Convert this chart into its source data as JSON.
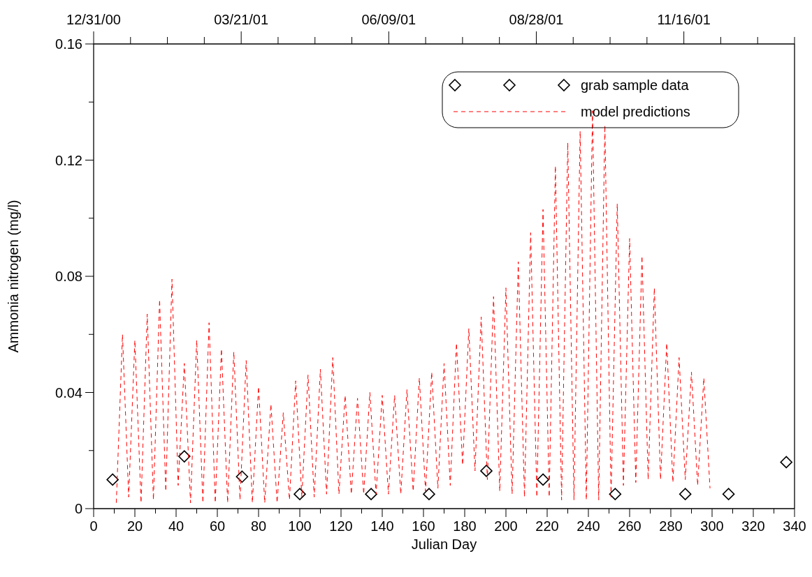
{
  "chart_data": {
    "type": "line",
    "xlabel": "Julian Day",
    "ylabel": "Ammonia nitrogen (mg/l)",
    "xlim": [
      0,
      340
    ],
    "ylim": [
      0,
      0.16
    ],
    "xticks": [
      0,
      {
        "value": 10,
        "label": null
      },
      20,
      {
        "value": 30,
        "label": null
      },
      40,
      {
        "value": 50,
        "label": null
      },
      60,
      {
        "value": 70,
        "label": null
      },
      80,
      {
        "value": 90,
        "label": null
      },
      100,
      {
        "value": 110,
        "label": null
      },
      120,
      {
        "value": 130,
        "label": null
      },
      140,
      {
        "value": 150,
        "label": null
      },
      160,
      {
        "value": 170,
        "label": null
      },
      180,
      {
        "value": 190,
        "label": null
      },
      200,
      {
        "value": 210,
        "label": null
      },
      220,
      {
        "value": 230,
        "label": null
      },
      240,
      {
        "value": 250,
        "label": null
      },
      260,
      {
        "value": 270,
        "label": null
      },
      280,
      {
        "value": 290,
        "label": null
      },
      300,
      {
        "value": 310,
        "label": null
      },
      320,
      {
        "value": 330,
        "label": null
      },
      340
    ],
    "yticks": [
      0,
      {
        "value": 0.02,
        "label": null
      },
      0.04,
      {
        "value": 0.06,
        "label": null
      },
      0.08,
      {
        "value": 0.1,
        "label": null
      },
      0.12,
      {
        "value": 0.14,
        "label": null
      },
      0.16
    ],
    "x2lim": [
      "2000-12-31",
      "2002-01-15"
    ],
    "x2ticks": [
      {
        "value": "2000-12-31",
        "label": "12/31/00"
      },
      {
        "value": "2001-01-20",
        "label": null
      },
      {
        "value": "2001-02-09",
        "label": null
      },
      {
        "value": "2001-03-01",
        "label": null
      },
      {
        "value": "2001-03-21",
        "label": "03/21/01"
      },
      {
        "value": "2001-04-10",
        "label": null
      },
      {
        "value": "2001-04-30",
        "label": null
      },
      {
        "value": "2001-05-20",
        "label": null
      },
      {
        "value": "2001-06-09",
        "label": "06/09/01"
      },
      {
        "value": "2001-06-29",
        "label": null
      },
      {
        "value": "2001-07-19",
        "label": null
      },
      {
        "value": "2001-08-08",
        "label": null
      },
      {
        "value": "2001-08-28",
        "label": "08/28/01"
      },
      {
        "value": "2001-09-17",
        "label": null
      },
      {
        "value": "2001-10-07",
        "label": null
      },
      {
        "value": "2001-10-27",
        "label": null
      },
      {
        "value": "2001-11-16",
        "label": "11/16/01"
      },
      {
        "value": "2001-12-06",
        "label": null
      },
      {
        "value": "2001-12-26",
        "label": null
      },
      {
        "value": "2002-01-15",
        "label": null
      }
    ],
    "grid": false,
    "legend": "top right",
    "series": [
      {
        "name": "grab sample data",
        "type": "scatter",
        "marker": "diamond",
        "color": "#000000",
        "x": [
          9.2,
          44,
          72,
          100,
          134.6,
          162.7,
          190.5,
          218,
          253,
          287,
          308,
          336
        ],
        "values": [
          0.01,
          0.018,
          0.011,
          0.005,
          0.005,
          0.005,
          0.013,
          0.01,
          0.005,
          0.005,
          0.005,
          0.016
        ]
      },
      {
        "name": "model predictions",
        "line_style": "dashed",
        "color": "#ff0000",
        "x": [
          11,
          14,
          17,
          20,
          23,
          26,
          29,
          32,
          35,
          38,
          41,
          44,
          47,
          50,
          53,
          56,
          59,
          62,
          65,
          68,
          71,
          74,
          77,
          80,
          83,
          86,
          89,
          92,
          95,
          98,
          101,
          104,
          107,
          110,
          113,
          116,
          119,
          122,
          125,
          128,
          131,
          134,
          137,
          140,
          143,
          146,
          149,
          152,
          155,
          158,
          161,
          164,
          167,
          170,
          173,
          176,
          179,
          182,
          185,
          188,
          191,
          194,
          197,
          200,
          203,
          206,
          209,
          212,
          215,
          218,
          221,
          224,
          227,
          230,
          233,
          236,
          239,
          242,
          245,
          248,
          251,
          254,
          257,
          260,
          263,
          266,
          269,
          272,
          275,
          278,
          281,
          284,
          287,
          290,
          293,
          296,
          299
        ],
        "values": [
          0.002,
          0.06,
          0.004,
          0.058,
          0.002,
          0.067,
          0.003,
          0.072,
          0.006,
          0.079,
          0.008,
          0.05,
          0.002,
          0.058,
          0.002,
          0.064,
          0.002,
          0.055,
          0.002,
          0.054,
          0.003,
          0.051,
          0.002,
          0.042,
          0.002,
          0.036,
          0.002,
          0.033,
          0.003,
          0.044,
          0.004,
          0.046,
          0.004,
          0.048,
          0.005,
          0.052,
          0.005,
          0.039,
          0.005,
          0.038,
          0.005,
          0.04,
          0.005,
          0.039,
          0.005,
          0.039,
          0.005,
          0.041,
          0.006,
          0.045,
          0.006,
          0.047,
          0.007,
          0.05,
          0.008,
          0.057,
          0.015,
          0.062,
          0.013,
          0.066,
          0.01,
          0.073,
          0.006,
          0.076,
          0.005,
          0.085,
          0.004,
          0.095,
          0.004,
          0.103,
          0.004,
          0.118,
          0.003,
          0.126,
          0.003,
          0.13,
          0.003,
          0.137,
          0.003,
          0.132,
          0.004,
          0.105,
          0.008,
          0.093,
          0.009,
          0.087,
          0.01,
          0.076,
          0.01,
          0.057,
          0.009,
          0.052,
          0.01,
          0.047,
          0.008,
          0.045,
          0.007
        ]
      }
    ]
  }
}
